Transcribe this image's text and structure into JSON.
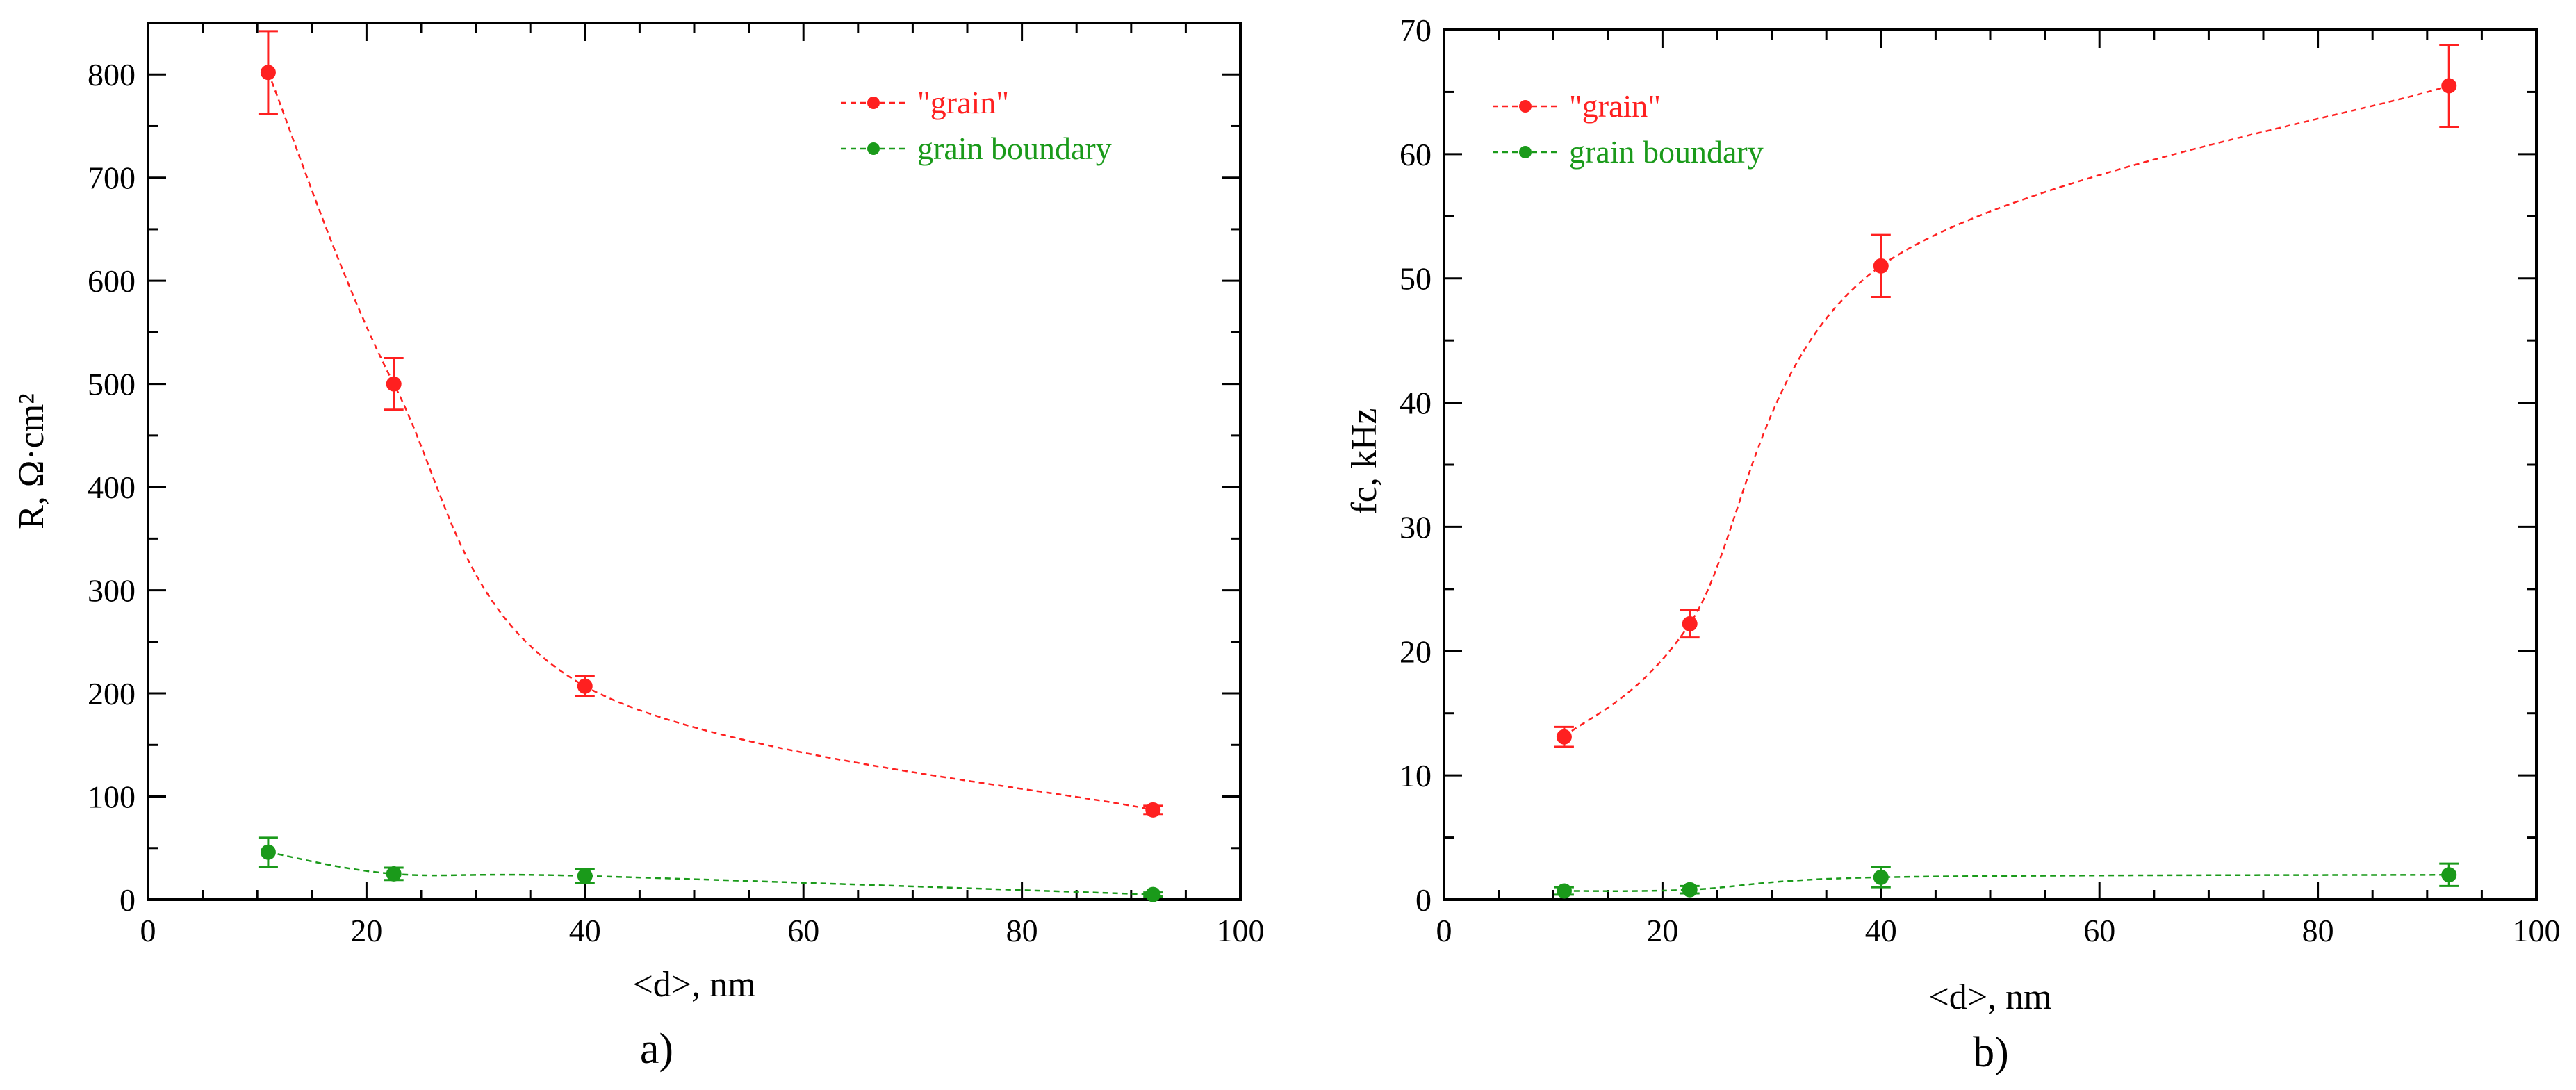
{
  "chart_data": [
    {
      "type": "line",
      "panel_label": "a)",
      "xlabel": "<d>, nm",
      "ylabel": "R, Ω·cm²",
      "xlim": [
        0,
        100
      ],
      "ylim": [
        0,
        850
      ],
      "xticks": [
        0,
        20,
        40,
        60,
        80,
        100
      ],
      "yticks": [
        0,
        100,
        200,
        300,
        400,
        500,
        600,
        700,
        800
      ],
      "legend_position": "top-right",
      "series": [
        {
          "name": "\"grain\"",
          "color": "#ff2020",
          "x": [
            11,
            22.5,
            40,
            92
          ],
          "y": [
            802,
            500,
            207,
            87
          ],
          "err": [
            40,
            25,
            10,
            4
          ]
        },
        {
          "name": "grain boundary",
          "color": "#1a9a1a",
          "x": [
            11,
            22.5,
            40,
            92
          ],
          "y": [
            46,
            25,
            23,
            5
          ],
          "err": [
            14,
            6,
            7,
            2
          ]
        }
      ]
    },
    {
      "type": "line",
      "panel_label": "b)",
      "xlabel": "<d>, nm",
      "ylabel": "fc, kHz",
      "xlim": [
        0,
        100
      ],
      "ylim": [
        0,
        70
      ],
      "xticks": [
        0,
        20,
        40,
        60,
        80,
        100
      ],
      "yticks": [
        0,
        10,
        20,
        30,
        40,
        50,
        60,
        70
      ],
      "legend_position": "top-left",
      "series": [
        {
          "name": "\"grain\"",
          "color": "#ff2020",
          "x": [
            11,
            22.5,
            40,
            92
          ],
          "y": [
            13.1,
            22.2,
            51,
            65.5
          ],
          "err": [
            0.8,
            1.1,
            2.5,
            3.3
          ]
        },
        {
          "name": "grain boundary",
          "color": "#1a9a1a",
          "x": [
            11,
            22.5,
            40,
            92
          ],
          "y": [
            0.7,
            0.8,
            1.8,
            2.0
          ],
          "err": [
            0.3,
            0.3,
            0.8,
            0.9
          ]
        }
      ]
    }
  ]
}
